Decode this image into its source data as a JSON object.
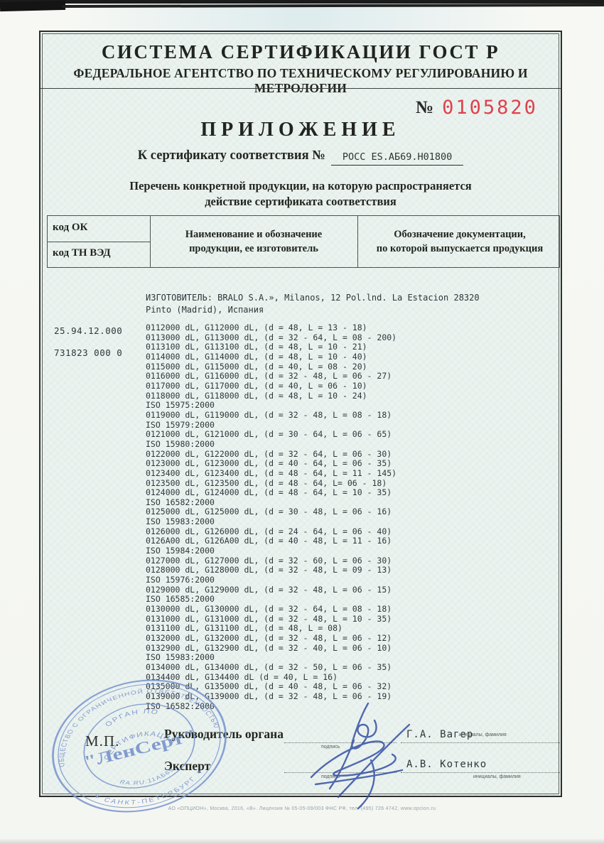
{
  "header": {
    "system_title": "СИСТЕМА СЕРТИФИКАЦИИ ГОСТ Р",
    "agency_title": "ФЕДЕРАЛЬНОЕ АГЕНТСТВО ПО ТЕХНИЧЕСКОМУ РЕГУЛИРОВАНИЮ И МЕТРОЛОГИИ"
  },
  "blank_number": {
    "prefix": "№",
    "value": "0105820",
    "color": "#e0414d"
  },
  "doc_title": "ПРИЛОЖЕНИЕ",
  "certificate_ref": {
    "label": "К сертификату соответствия №",
    "value": "РОСС ES.АБ69.H01800"
  },
  "subtitle": {
    "line1": "Перечень конкретной продукции,  на которую распространяется",
    "line2": "действие сертификата соответствия"
  },
  "table": {
    "col1_row1": "код ОК",
    "col1_row2": "код ТН ВЭД",
    "col2": "Наименование и обозначение\nпродукции, ее изготовитель",
    "col3": "Обозначение документации,\nпо которой выпускается продукция"
  },
  "codes": {
    "ok": "25.94.12.000",
    "tnved": "731823 000 0"
  },
  "manufacturer": {
    "line1": "ИЗГОТОВИТЕЛЬ: BRALO S.A.», Milanos, 12 Pol.lnd. La Estacion 28320",
    "line2": "Pinto (Madrid), Испания"
  },
  "products": [
    "0112000 dL, G112000 dL, (d = 48, L = 13 - 18)",
    "0113000 dL, G113000 dL, (d = 32 - 64, L = 08 - 200)",
    "0113100 dL, G113100 dL, (d = 48, L = 10 - 21)",
    "0114000 dL, G114000 dL, (d = 48, L = 10 - 40)",
    "0115000 dL, G115000 dL, (d = 40, L = 08 - 20)",
    "0116000 dL, G116000 dL, (d = 32 - 48, L = 06 - 27)",
    "0117000 dL, G117000 dL, (d = 40, L = 06 - 10)",
    "0118000 dL, G118000 dL, (d = 48, L = 10 - 24)",
    "ISO 15975:2000",
    "0119000 dL, G119000 dL, (d = 32 - 48, L = 08 - 18)",
    "ISO 15979:2000",
    "0121000 dL, G121000 dL, (d = 30 - 64, L = 06 - 65)",
    "ISO 15980:2000",
    "0122000 dL, G122000 dL, (d = 32 - 64, L = 06 - 30)",
    "0123000 dL, G123000 dL, (d = 40 - 64, L = 06 - 35)",
    "0123400 dL, G123400 dL, (d = 48 - 64, L = 11 - 145)",
    "0123500 dL, G123500 dL, (d = 48 - 64, L= 06 - 18)",
    "0124000 dL, G124000 dL, (d = 48 - 64, L = 10 - 35)",
    "ISO 16582:2000",
    "0125000 dL, G125000 dL, (d = 30 - 48, L = 06 - 16)",
    "ISO 15983:2000",
    "0126000 dL, G126000 dL, (d = 24 - 64, L = 06 - 40)",
    "0126A00 dL, G126A00 dL, (d = 40 - 48, L = 11 - 16)",
    "ISO 15984:2000",
    "0127000 dL, G127000 dL, (d = 32 - 60, L = 06 - 30)",
    "0128000 dL, G128000 dL, (d = 32 - 48, L = 09 - 13)",
    "ISO 15976:2000",
    "0129000 dL, G129000 dL, (d = 32 - 48, L = 06 - 15)",
    "ISO 16585:2000",
    "0130000 dL, G130000 dL, (d = 32 - 64, L = 08 - 18)",
    "0131000 dL, G131000 dL, (d = 32 - 48, L = 10 - 35)",
    "0131100 dL, G131100 dL, (d = 48, L = 08)",
    "0132000 dL, G132000 dL, (d = 32 - 48, L = 06 - 12)",
    "0132900 dL, G132900 dL, (d = 32 - 40, L = 06 - 10)",
    "ISO 15983:2000",
    "0134000 dL, G134000 dL, (d = 32 - 50, L = 06 - 35)",
    "0134400 dL, G134400 dL (d = 40, L = 16)",
    "0135000 dL, G135000 dL, (d = 40 - 48, L = 06 - 32)",
    "0139000 dL, G139000 dL, (d = 32 - 48, L = 06 - 19)",
    "ISO 16582:2000"
  ],
  "signatures": {
    "row1": {
      "role": "Руководитель органа",
      "sign_label": "подпись",
      "name": "Г.А. Вагер",
      "name_label": "инициалы, фамилия"
    },
    "row2": {
      "role": "Эксперт",
      "sign_label": "подпись",
      "name": "А.В. Котенко",
      "name_label": "инициалы, фамилия"
    }
  },
  "stamp": {
    "outer_top": "ОБЩЕСТВО С ОГРАНИЧЕННОЙ ОТВЕТСТВЕННОСТЬЮ",
    "outer_bottom": "✶ САНКТ-ПЕТЕРБУРГ ✶",
    "inner_line1": "ОРГАН ПО",
    "inner_line2": "СЕРТИФИКАЦИИ",
    "center": "\"ЛенСерт\"",
    "reg": "RA.RU.11АБ69",
    "mp": "М.П."
  },
  "footer": "АО «ОПЦИОН», Москва, 2016, «В».   Лицензия № 05-05-09/003 ФНС РФ, тел. (495) 726 4742, www.opcion.ru"
}
